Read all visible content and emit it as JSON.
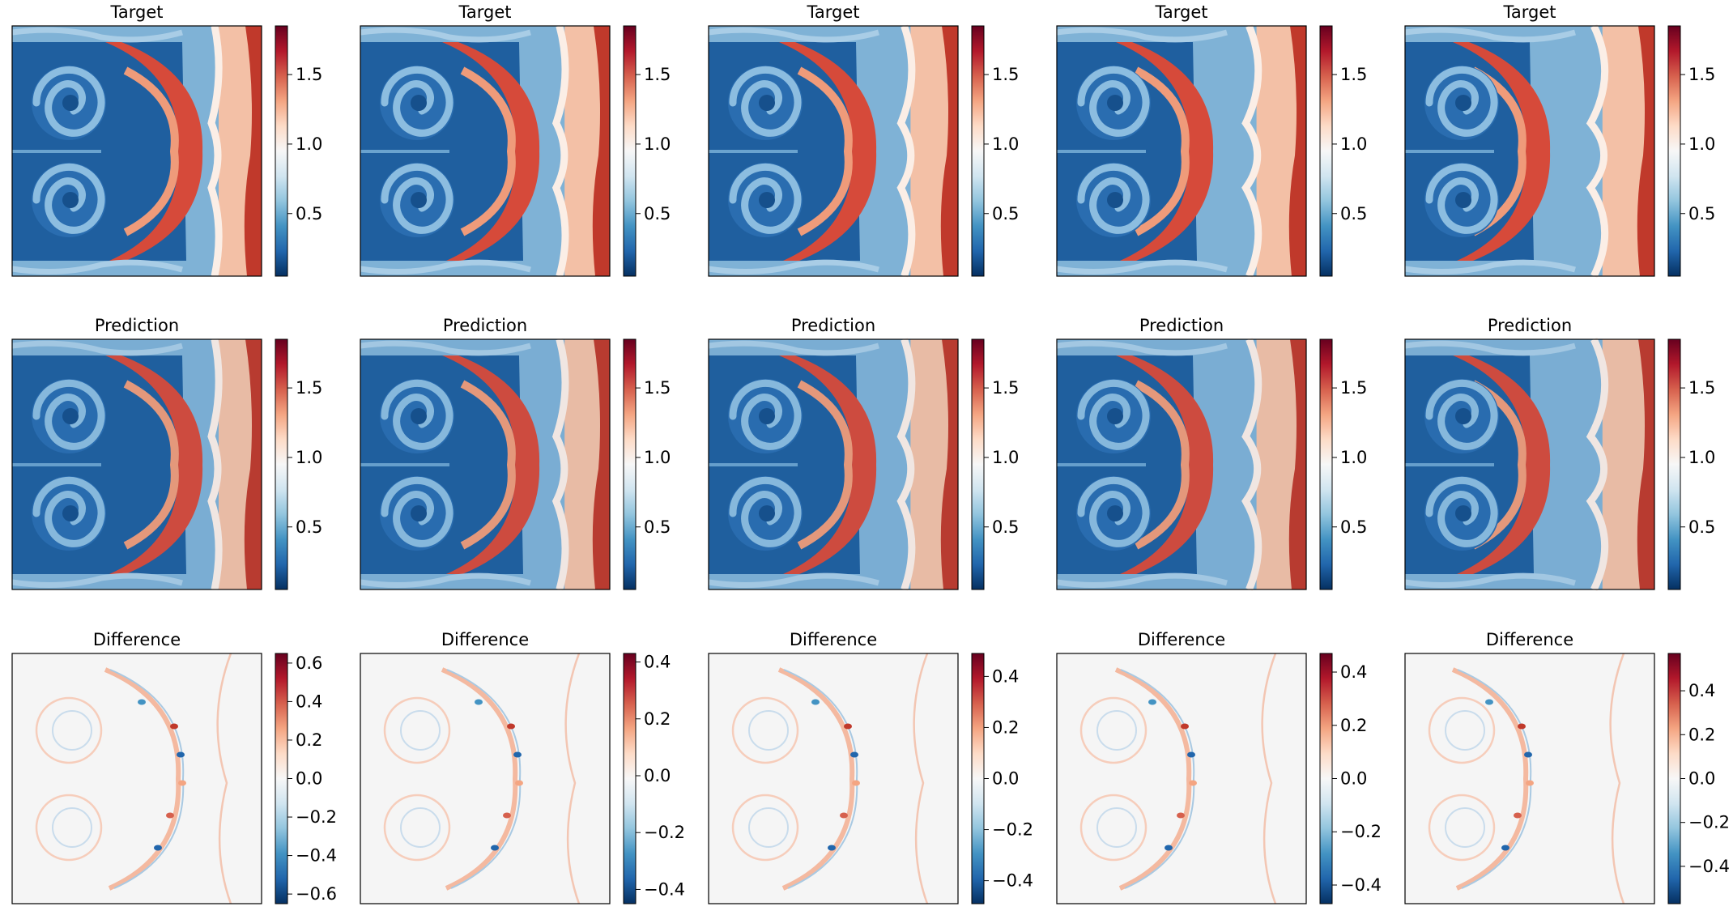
{
  "chart_data": {
    "type": "heatmap",
    "layout": "3x5 grid of field snapshots with colorbars",
    "colormap": "RdBu_r",
    "rows": [
      {
        "title": "Target",
        "panels": [
          {
            "vmin": 0.05,
            "vmax": 1.85,
            "ticks": [
              0.5,
              1.0,
              1.5
            ],
            "tick_labels": [
              "0.5",
              "1.0",
              "1.5"
            ]
          },
          {
            "vmin": 0.05,
            "vmax": 1.85,
            "ticks": [
              0.5,
              1.0,
              1.5
            ],
            "tick_labels": [
              "0.5",
              "1.0",
              "1.5"
            ]
          },
          {
            "vmin": 0.05,
            "vmax": 1.85,
            "ticks": [
              0.5,
              1.0,
              1.5
            ],
            "tick_labels": [
              "0.5",
              "1.0",
              "1.5"
            ]
          },
          {
            "vmin": 0.05,
            "vmax": 1.85,
            "ticks": [
              0.5,
              1.0,
              1.5
            ],
            "tick_labels": [
              "0.5",
              "1.0",
              "1.5"
            ]
          },
          {
            "vmin": 0.05,
            "vmax": 1.85,
            "ticks": [
              0.5,
              1.0,
              1.5
            ],
            "tick_labels": [
              "0.5",
              "1.0",
              "1.5"
            ]
          }
        ]
      },
      {
        "title": "Prediction",
        "panels": [
          {
            "vmin": 0.05,
            "vmax": 1.85,
            "ticks": [
              0.5,
              1.0,
              1.5
            ],
            "tick_labels": [
              "0.5",
              "1.0",
              "1.5"
            ]
          },
          {
            "vmin": 0.05,
            "vmax": 1.85,
            "ticks": [
              0.5,
              1.0,
              1.5
            ],
            "tick_labels": [
              "0.5",
              "1.0",
              "1.5"
            ]
          },
          {
            "vmin": 0.05,
            "vmax": 1.85,
            "ticks": [
              0.5,
              1.0,
              1.5
            ],
            "tick_labels": [
              "0.5",
              "1.0",
              "1.5"
            ]
          },
          {
            "vmin": 0.05,
            "vmax": 1.85,
            "ticks": [
              0.5,
              1.0,
              1.5
            ],
            "tick_labels": [
              "0.5",
              "1.0",
              "1.5"
            ]
          },
          {
            "vmin": 0.05,
            "vmax": 1.85,
            "ticks": [
              0.5,
              1.0,
              1.5
            ],
            "tick_labels": [
              "0.5",
              "1.0",
              "1.5"
            ]
          }
        ]
      },
      {
        "title": "Difference",
        "panels": [
          {
            "vmin": -0.65,
            "vmax": 0.65,
            "ticks": [
              -0.6,
              -0.4,
              -0.2,
              0.0,
              0.2,
              0.4,
              0.6
            ],
            "tick_labels": [
              "−0.6",
              "−0.4",
              "−0.2",
              "0.0",
              "0.2",
              "0.4",
              "0.6"
            ]
          },
          {
            "vmin": -0.45,
            "vmax": 0.43,
            "ticks": [
              -0.4,
              -0.2,
              0.0,
              0.2,
              0.4
            ],
            "tick_labels": [
              "−0.4",
              "−0.2",
              "0.0",
              "0.2",
              "0.4"
            ]
          },
          {
            "vmin": -0.49,
            "vmax": 0.49,
            "ticks": [
              -0.4,
              -0.2,
              0.0,
              0.2,
              0.4
            ],
            "tick_labels": [
              "−0.4",
              "−0.2",
              "0.0",
              "0.2",
              "0.4"
            ]
          },
          {
            "vmin": -0.47,
            "vmax": 0.47,
            "ticks": [
              -0.4,
              -0.2,
              0.0,
              0.2,
              0.4
            ],
            "tick_labels": [
              "−0.4",
              "−0.2",
              "0.0",
              "0.2",
              "0.4"
            ]
          },
          {
            "vmin": -0.57,
            "vmax": 0.57,
            "ticks": [
              -0.4,
              -0.2,
              0.0,
              0.2,
              0.4
            ],
            "tick_labels": [
              "−0.4",
              "−0.2",
              "0.0",
              "0.2",
              "0.4"
            ]
          }
        ]
      }
    ]
  }
}
